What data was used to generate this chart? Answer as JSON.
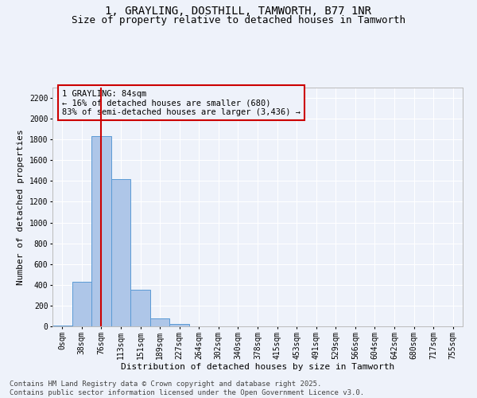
{
  "title_line1": "1, GRAYLING, DOSTHILL, TAMWORTH, B77 1NR",
  "title_line2": "Size of property relative to detached houses in Tamworth",
  "xlabel": "Distribution of detached houses by size in Tamworth",
  "ylabel": "Number of detached properties",
  "bar_color": "#aec6e8",
  "bar_edge_color": "#5b9bd5",
  "categories": [
    "0sqm",
    "38sqm",
    "76sqm",
    "113sqm",
    "151sqm",
    "189sqm",
    "227sqm",
    "264sqm",
    "302sqm",
    "340sqm",
    "378sqm",
    "415sqm",
    "453sqm",
    "491sqm",
    "529sqm",
    "566sqm",
    "604sqm",
    "642sqm",
    "680sqm",
    "717sqm",
    "755sqm"
  ],
  "values": [
    5,
    430,
    1830,
    1415,
    355,
    75,
    25,
    3,
    0,
    0,
    0,
    0,
    0,
    0,
    0,
    0,
    0,
    0,
    0,
    0,
    0
  ],
  "ylim": [
    0,
    2300
  ],
  "yticks": [
    0,
    200,
    400,
    600,
    800,
    1000,
    1200,
    1400,
    1600,
    1800,
    2000,
    2200
  ],
  "property_bin_index": 2,
  "vline_color": "#cc0000",
  "annotation_text": "1 GRAYLING: 84sqm\n← 16% of detached houses are smaller (680)\n83% of semi-detached houses are larger (3,436) →",
  "annotation_box_color": "#cc0000",
  "footer_line1": "Contains HM Land Registry data © Crown copyright and database right 2025.",
  "footer_line2": "Contains public sector information licensed under the Open Government Licence v3.0.",
  "background_color": "#eef2fa",
  "grid_color": "#ffffff",
  "title_fontsize": 10,
  "subtitle_fontsize": 9,
  "axis_label_fontsize": 8,
  "tick_fontsize": 7,
  "footer_fontsize": 6.5,
  "annotation_fontsize": 7.5
}
